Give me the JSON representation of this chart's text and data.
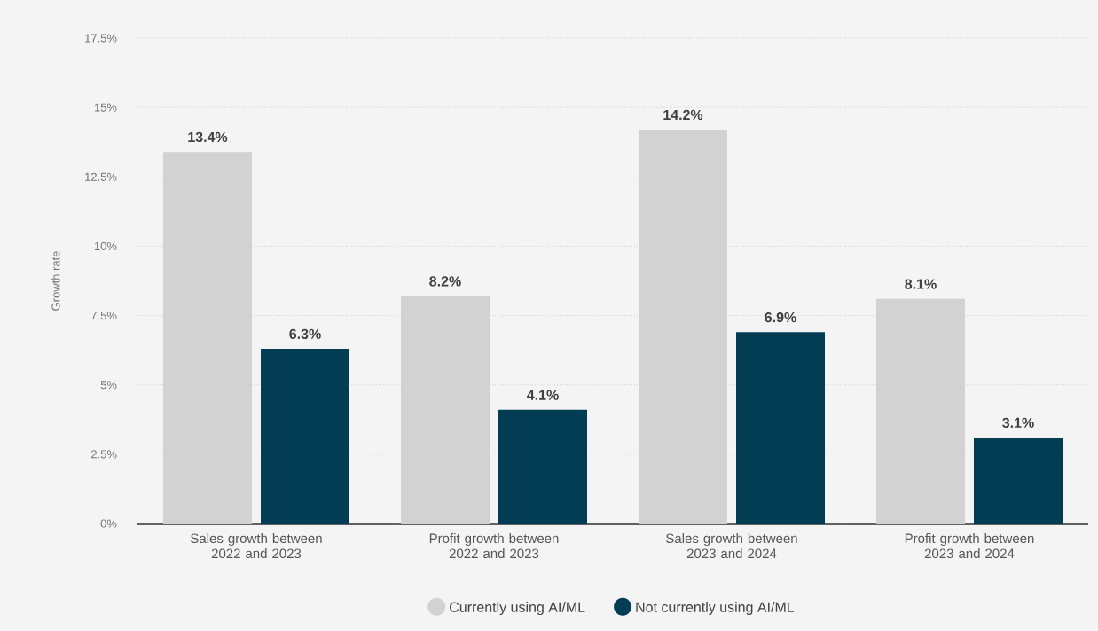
{
  "chart_data": {
    "type": "bar",
    "ylabel": "Growth rate",
    "categories": [
      "Sales growth between 2022 and 2023",
      "Profit growth between 2022 and 2023",
      "Sales growth between 2023 and 2024",
      "Profit growth between 2023 and 2024"
    ],
    "series": [
      {
        "name": "Currently using AI/ML",
        "color": "#d2d2d2",
        "values": [
          13.4,
          8.2,
          14.2,
          8.1
        ],
        "value_labels": [
          "13.4%",
          "8.2%",
          "14.2%",
          "8.1%"
        ]
      },
      {
        "name": "Not currently using AI/ML",
        "color": "#023d54",
        "values": [
          6.3,
          4.1,
          6.9,
          3.1
        ],
        "value_labels": [
          "6.3%",
          "4.1%",
          "6.9%",
          "3.1%"
        ]
      }
    ],
    "ylim": [
      0,
      17.5
    ],
    "yticks": [
      {
        "value": 0,
        "label": "0%"
      },
      {
        "value": 2.5,
        "label": "2.5%"
      },
      {
        "value": 5,
        "label": "5%"
      },
      {
        "value": 7.5,
        "label": "7.5%"
      },
      {
        "value": 10,
        "label": "10%"
      },
      {
        "value": 12.5,
        "label": "12.5%"
      },
      {
        "value": 15,
        "label": "15%"
      },
      {
        "value": 17.5,
        "label": "17.5%"
      }
    ],
    "grid": "y",
    "legend": "bottom"
  }
}
